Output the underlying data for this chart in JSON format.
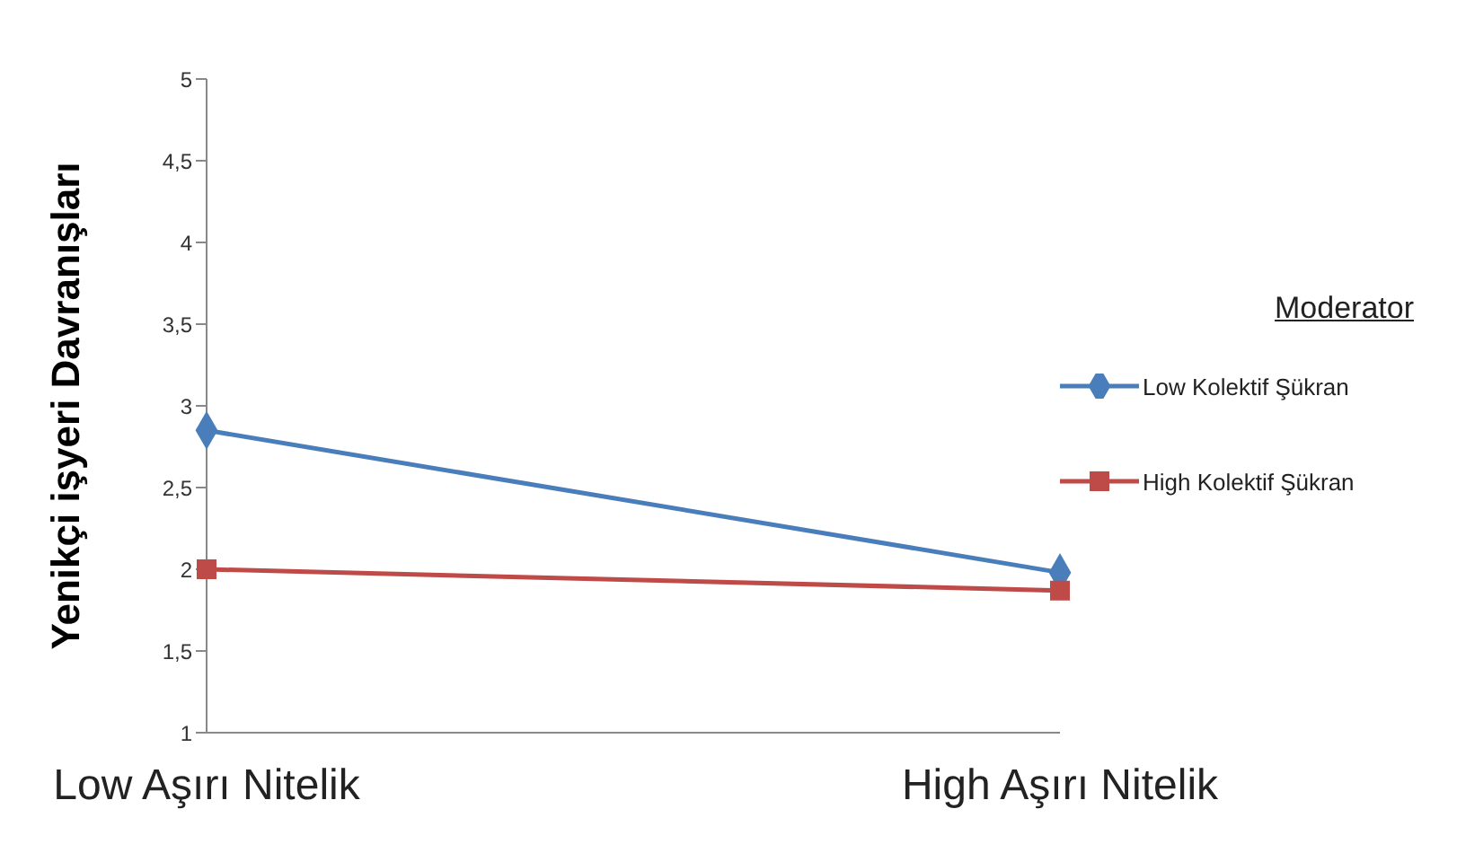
{
  "chart_data": {
    "type": "line",
    "ylabel": "Yenikçi işyeri Davranışları",
    "legend_title": "Moderator",
    "categories": [
      "Low Aşırı Nitelik",
      "High Aşırı Nitelik"
    ],
    "series": [
      {
        "name": "Low Kolektif Şükran",
        "color": "#4a7ebb",
        "values": [
          2.85,
          1.98
        ],
        "marker": "diamond"
      },
      {
        "name": "High Kolektif Şükran",
        "color": "#be4b48",
        "values": [
          2.0,
          1.87
        ],
        "marker": "square"
      }
    ],
    "ylim": [
      1,
      5
    ],
    "yticks": [
      1,
      {
        "value": 1.5,
        "label": "1,5"
      },
      2,
      {
        "value": 2.5,
        "label": "2,5"
      },
      3,
      {
        "value": 3.5,
        "label": "3,5"
      },
      4,
      {
        "value": 4.5,
        "label": "4,5"
      },
      5
    ],
    "grid": false,
    "legend": "right",
    "line_style": "solid"
  }
}
